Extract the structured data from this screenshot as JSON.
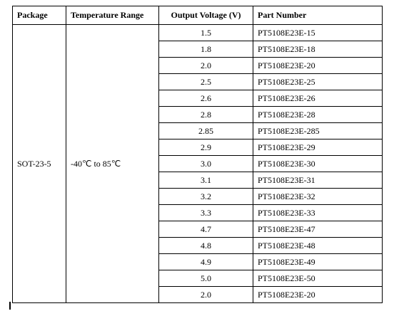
{
  "table": {
    "headers": [
      "Package",
      "Temperature Range",
      "Output Voltage (V)",
      "Part Number"
    ],
    "package": "SOT-23-5",
    "temperature_range": "-40℃ to 85℃",
    "rows": [
      [
        "1.5",
        "PT5108E23E-15"
      ],
      [
        "1.8",
        "PT5108E23E-18"
      ],
      [
        "2.0",
        "PT5108E23E-20"
      ],
      [
        "2.5",
        "PT5108E23E-25"
      ],
      [
        "2.6",
        "PT5108E23E-26"
      ],
      [
        "2.8",
        "PT5108E23E-28"
      ],
      [
        "2.85",
        "PT5108E23E-285"
      ],
      [
        "2.9",
        "PT5108E23E-29"
      ],
      [
        "3.0",
        "PT5108E23E-30"
      ],
      [
        "3.1",
        "PT5108E23E-31"
      ],
      [
        "3.2",
        "PT5108E23E-32"
      ],
      [
        "3.3",
        "PT5108E23E-33"
      ],
      [
        "4.7",
        "PT5108E23E-47"
      ],
      [
        "4.8",
        "PT5108E23E-48"
      ],
      [
        "4.9",
        "PT5108E23E-49"
      ],
      [
        "5.0",
        "PT5108E23E-50"
      ],
      [
        "2.0",
        "PT5108E23E-20"
      ]
    ]
  }
}
